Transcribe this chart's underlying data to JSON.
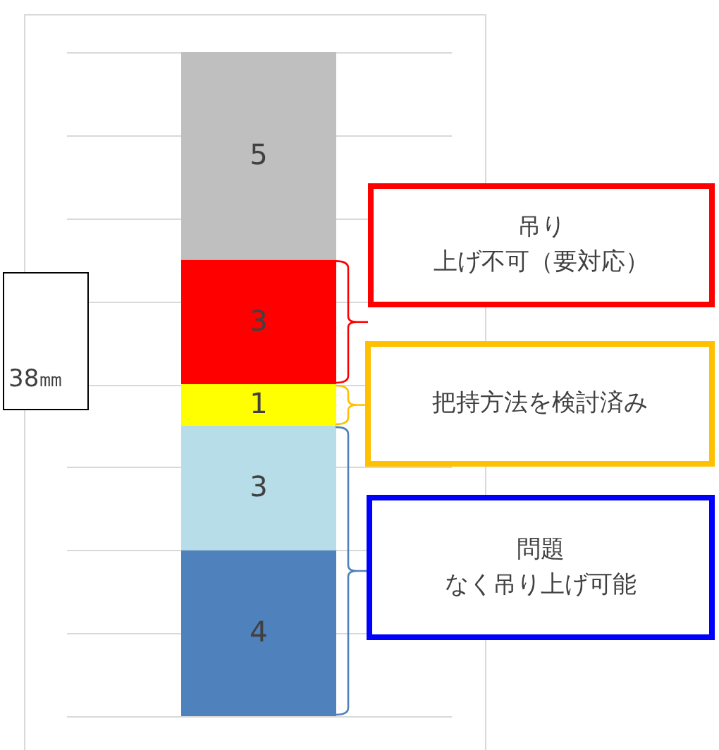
{
  "chart_data": {
    "type": "bar",
    "stacked": true,
    "categories": [
      null
    ],
    "series": [
      {
        "color": "#4f81bd",
        "values": [
          4
        ]
      },
      {
        "color": "#b7dee8",
        "values": [
          3
        ]
      },
      {
        "color": "#ffff00",
        "values": [
          1
        ]
      },
      {
        "color": "#ff0000",
        "values": [
          3
        ]
      },
      {
        "color": "#bfbfbf",
        "values": [
          5
        ]
      }
    ],
    "ylim": [
      0,
      16
    ],
    "yticks": [
      {
        "value": 0,
        "label": null
      },
      {
        "value": 2,
        "label": null
      },
      {
        "value": 4,
        "label": null
      },
      {
        "value": 6,
        "label": null
      },
      {
        "value": 8,
        "label": null
      },
      {
        "value": 10,
        "label": null
      },
      {
        "value": 12,
        "label": null
      },
      {
        "value": 14,
        "label": null
      },
      {
        "value": 16,
        "label": null
      }
    ],
    "grid": "y",
    "data_labels": true,
    "annotations": [
      "吊り上げ不可（要対応）",
      "把持方法を検討済み",
      "問題なく吊り上げ可能",
      "38㎜"
    ]
  }
}
